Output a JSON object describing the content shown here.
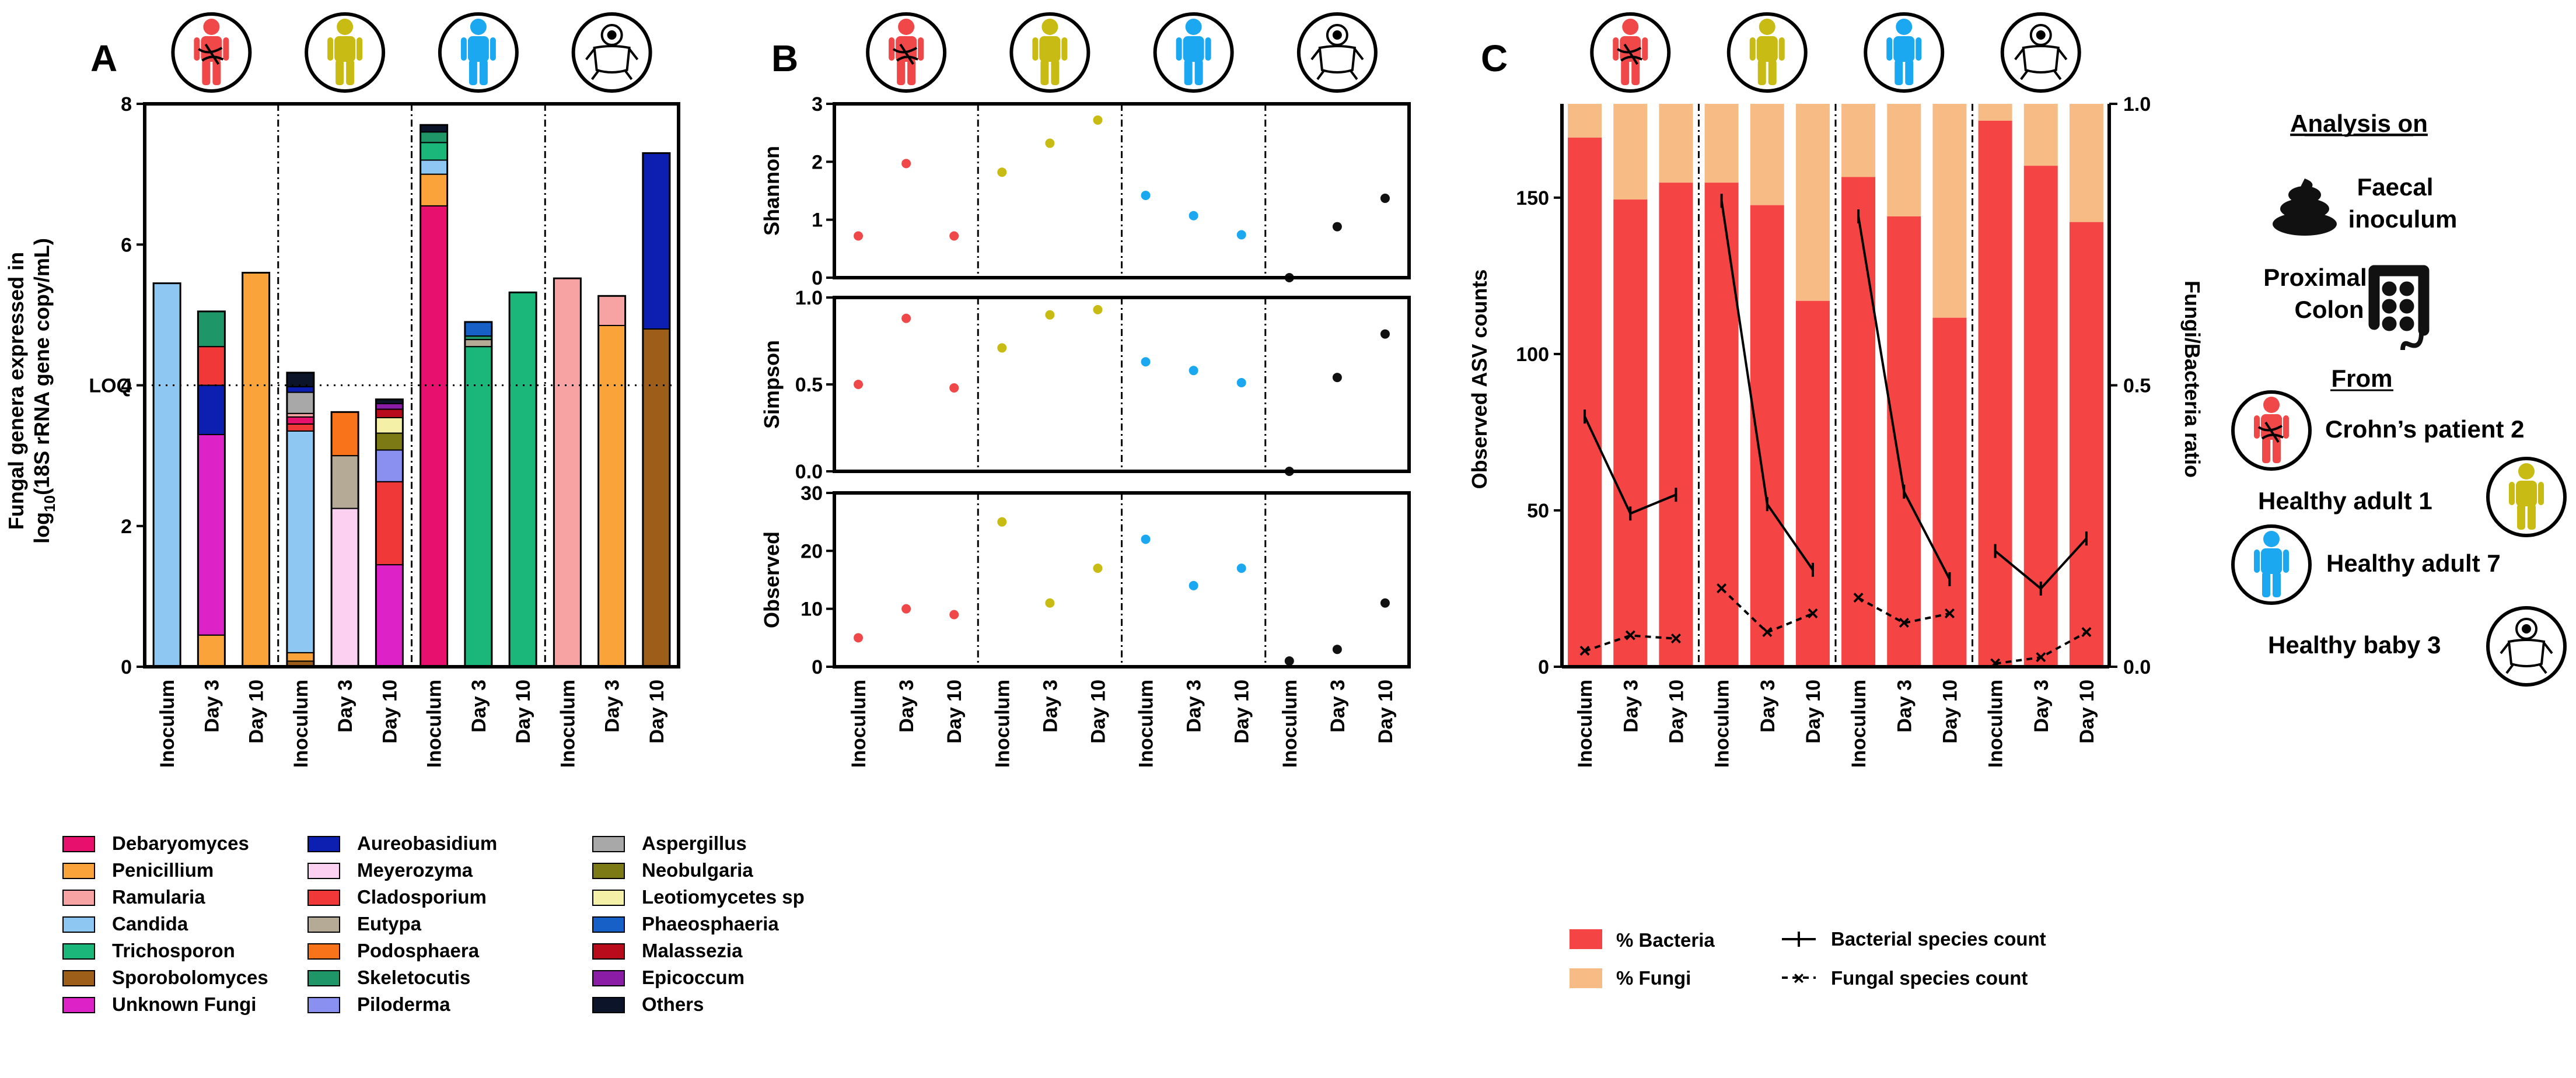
{
  "colors": {
    "Debaryomyces": "#e8106d",
    "Penicillium": "#f9a33a",
    "Ramularia": "#f7a3a3",
    "Candida": "#8ec8f2",
    "Trichosporon": "#1bb77a",
    "Sporobolomyces": "#9c5e18",
    "Unknown Fungi": "#dd22c8",
    "Aureobasidium": "#0c1fb0",
    "Meyerozyma": "#fbd0f0",
    "Cladosporium": "#f03838",
    "Eutypa": "#b4aa96",
    "Podosphaera": "#f8731a",
    "Skeletocutis": "#1f9668",
    "Piloderma": "#8a90f0",
    "Aspergillus": "#a8a8a8",
    "Neobulgaria": "#7c7a14",
    "Leotiomycetes sp": "#f4f0a8",
    "Phaeosphaeria": "#1660c8",
    "Malassezia": "#b80c1c",
    "Epicoccum": "#8a1ca6",
    "Others": "#0b1428",
    "crohn": "#f04848",
    "adult1": "#c8bc14",
    "adult7": "#1ca8f0",
    "baby": "#111111",
    "bacteria": "#f44444",
    "fungi": "#f7bb86"
  },
  "subjects": [
    {
      "key": "crohn",
      "label": "Crohn’s patient 2",
      "icon": "crohn-patient-icon"
    },
    {
      "key": "adult1",
      "label": "Healthy adult 1",
      "icon": "healthy-adult-1-icon"
    },
    {
      "key": "adult7",
      "label": "Healthy adult 7",
      "icon": "healthy-adult-7-icon"
    },
    {
      "key": "baby",
      "label": "Healthy baby 3",
      "icon": "healthy-baby-icon"
    }
  ],
  "panels": {
    "a": "A",
    "b": "B",
    "c": "C"
  },
  "chart_data": [
    {
      "id": "A",
      "type": "bar",
      "stacked": true,
      "ylabel_line1": "Fungal genera expressed in",
      "ylabel_line2": "log10(18S rRNA gene copy/mL)",
      "ylim": [
        0,
        8
      ],
      "yticks": [
        0,
        2,
        4,
        6,
        8
      ],
      "loq_value": 4,
      "loq_label": "LOQ",
      "categories": [
        "Inoculum",
        "Day 3",
        "Day 10",
        "Inoculum",
        "Day 3",
        "Day 10",
        "Inoculum",
        "Day 3",
        "Day 10",
        "Inoculum",
        "Day 3",
        "Day 10"
      ],
      "stacks": [
        [
          {
            "g": "Candida",
            "v": 5.45
          }
        ],
        [
          {
            "g": "Penicillium",
            "v": 0.45
          },
          {
            "g": "Unknown Fungi",
            "v": 2.85
          },
          {
            "g": "Aureobasidium",
            "v": 0.7
          },
          {
            "g": "Cladosporium",
            "v": 0.55
          },
          {
            "g": "Skeletocutis",
            "v": 0.5
          }
        ],
        [
          {
            "g": "Penicillium",
            "v": 5.6
          }
        ],
        [
          {
            "g": "Sporobolomyces",
            "v": 0.08
          },
          {
            "g": "Penicillium",
            "v": 0.12
          },
          {
            "g": "Candida",
            "v": 3.15
          },
          {
            "g": "Cladosporium",
            "v": 0.1
          },
          {
            "g": "Debaryomyces",
            "v": 0.1
          },
          {
            "g": "Ramularia",
            "v": 0.05
          },
          {
            "g": "Aspergillus",
            "v": 0.3
          },
          {
            "g": "Aureobasidium",
            "v": 0.08
          },
          {
            "g": "Others",
            "v": 0.2
          }
        ],
        [
          {
            "g": "Meyerozyma",
            "v": 2.25
          },
          {
            "g": "Eutypa",
            "v": 0.75
          },
          {
            "g": "Podosphaera",
            "v": 0.62
          }
        ],
        [
          {
            "g": "Unknown Fungi",
            "v": 1.45
          },
          {
            "g": "Cladosporium",
            "v": 1.18
          },
          {
            "g": "Piloderma",
            "v": 0.45
          },
          {
            "g": "Neobulgaria",
            "v": 0.24
          },
          {
            "g": "Leotiomycetes sp",
            "v": 0.22
          },
          {
            "g": "Malassezia",
            "v": 0.12
          },
          {
            "g": "Epicoccum",
            "v": 0.08
          },
          {
            "g": "Others",
            "v": 0.06
          }
        ],
        [
          {
            "g": "Debaryomyces",
            "v": 6.55
          },
          {
            "g": "Penicillium",
            "v": 0.45
          },
          {
            "g": "Candida",
            "v": 0.2
          },
          {
            "g": "Trichosporon",
            "v": 0.25
          },
          {
            "g": "Skeletocutis",
            "v": 0.15
          },
          {
            "g": "Others",
            "v": 0.1
          }
        ],
        [
          {
            "g": "Trichosporon",
            "v": 4.55
          },
          {
            "g": "Eutypa",
            "v": 0.1
          },
          {
            "g": "Skeletocutis",
            "v": 0.05
          },
          {
            "g": "Phaeosphaeria",
            "v": 0.2
          }
        ],
        [
          {
            "g": "Trichosporon",
            "v": 5.32
          }
        ],
        [
          {
            "g": "Ramularia",
            "v": 5.52
          }
        ],
        [
          {
            "g": "Penicillium",
            "v": 4.85
          },
          {
            "g": "Ramularia",
            "v": 0.42
          }
        ],
        [
          {
            "g": "Sporobolomyces",
            "v": 4.8
          },
          {
            "g": "Aureobasidium",
            "v": 2.5
          }
        ]
      ]
    },
    {
      "id": "B",
      "type": "scatter",
      "categories": [
        "Inoculum",
        "Day 3",
        "Day 10",
        "Inoculum",
        "Day 3",
        "Day 10",
        "Inoculum",
        "Day 3",
        "Day 10",
        "Inoculum",
        "Day 3",
        "Day 10"
      ],
      "subplots": [
        {
          "ylabel": "Shannon",
          "ylim": [
            0,
            3
          ],
          "yticks": [
            0,
            1,
            2,
            3
          ],
          "values": [
            0.72,
            1.97,
            0.72,
            1.82,
            2.32,
            2.72,
            1.42,
            1.07,
            0.74,
            0.0,
            0.88,
            1.37
          ]
        },
        {
          "ylabel": "Simpson",
          "ylim": [
            0,
            1
          ],
          "yticks": [
            0.0,
            0.5,
            1.0
          ],
          "ytick_labels": [
            "0.0",
            "0.5",
            "1.0"
          ],
          "values": [
            0.5,
            0.88,
            0.48,
            0.71,
            0.9,
            0.93,
            0.63,
            0.58,
            0.51,
            0.0,
            0.54,
            0.79
          ]
        },
        {
          "ylabel": "Observed",
          "ylim": [
            0,
            30
          ],
          "yticks": [
            0,
            10,
            20,
            30
          ],
          "values": [
            5,
            10,
            9,
            25,
            11,
            17,
            22,
            14,
            17,
            1,
            3,
            11
          ]
        }
      ]
    },
    {
      "id": "C",
      "type": "bar",
      "stacked": true,
      "percent": true,
      "ylabel_left": "Observed ASV counts",
      "ylabel_right": "Fungi/Bacteria ratio",
      "ylim_left": [
        0,
        180
      ],
      "yticks_left": [
        0,
        50,
        100,
        150
      ],
      "ylim_right": [
        0,
        1
      ],
      "yticks_right": [
        0.0,
        0.5,
        1.0
      ],
      "ytick_right_labels": [
        "0.0",
        "0.5",
        "1.0"
      ],
      "categories": [
        "Inoculum",
        "Day 3",
        "Day 10",
        "Inoculum",
        "Day 3",
        "Day 10",
        "Inoculum",
        "Day 3",
        "Day 10",
        "Inoculum",
        "Day 3",
        "Day 10"
      ],
      "series": [
        {
          "name": "% Bacteria",
          "values": [
            0.94,
            0.83,
            0.86,
            0.86,
            0.82,
            0.65,
            0.87,
            0.8,
            0.62,
            0.97,
            0.89,
            0.79
          ]
        },
        {
          "name": "% Fungi",
          "values": [
            0.06,
            0.17,
            0.14,
            0.14,
            0.18,
            0.35,
            0.13,
            0.2,
            0.38,
            0.03,
            0.11,
            0.21
          ]
        }
      ],
      "bacterial_species_count": [
        [
          80,
          49,
          55
        ],
        [
          149,
          52,
          31
        ],
        [
          144,
          56,
          28
        ],
        [
          37,
          25,
          41
        ]
      ],
      "fungal_species_count": [
        [
          5,
          10,
          9
        ],
        [
          25,
          11,
          17
        ],
        [
          22,
          14,
          17
        ],
        [
          1,
          3,
          11
        ]
      ]
    }
  ],
  "legend_a_col1": [
    "Debaryomyces",
    "Penicillium",
    "Ramularia",
    "Candida",
    "Trichosporon",
    "Sporobolomyces",
    "Unknown Fungi"
  ],
  "legend_a_col2": [
    "Aureobasidium",
    "Meyerozyma",
    "Cladosporium",
    "Eutypa",
    "Podosphaera",
    "Skeletocutis",
    "Piloderma"
  ],
  "legend_a_col3": [
    "Aspergillus",
    "Neobulgaria",
    "Leotiomycetes sp",
    "Phaeosphaeria",
    "Malassezia",
    "Epicoccum",
    "Others"
  ],
  "legend_c": {
    "bacteria": "% Bacteria",
    "fungi": "% Fungi",
    "bact_line": "Bacterial species count",
    "fung_line": "Fungal species count"
  },
  "side": {
    "analysis_on": "Analysis on",
    "faecal_line1": "Faecal",
    "faecal_line2": "inoculum",
    "proximal_line1": "Proximal",
    "proximal_line2": "Colon",
    "from": "From",
    "crohn": "Crohn’s patient 2",
    "adult1": "Healthy adult 1",
    "adult7": "Healthy adult 7",
    "baby": "Healthy baby 3"
  }
}
